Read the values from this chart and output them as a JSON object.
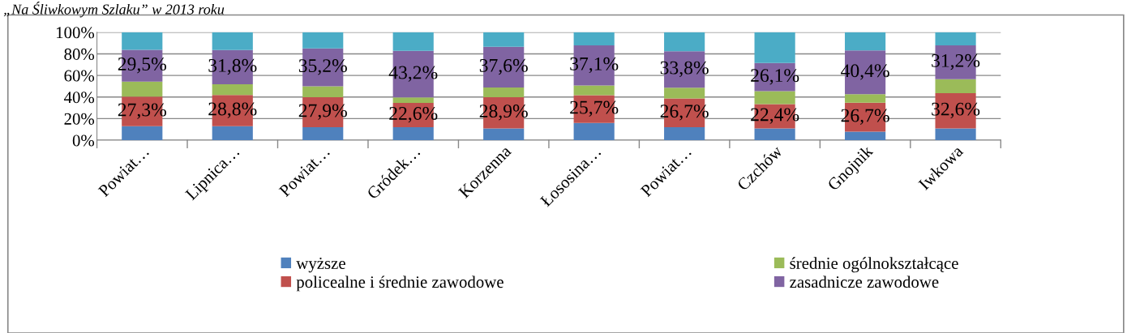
{
  "chart_data": {
    "type": "bar",
    "stacked": true,
    "title": "„Na Śliwkowym Szlaku” w 2013 roku",
    "categories": [
      "Powiat…",
      "Lipnica…",
      "Powiat…",
      "Gródek…",
      "Korzenna",
      "Łososina…",
      "Powiat…",
      "Czchów",
      "Gnojnik",
      "Iwkowa"
    ],
    "series": [
      {
        "name": "wyższe",
        "color": "#4f81bd",
        "values": [
          13,
          13,
          12,
          12,
          11,
          16,
          12,
          11,
          8,
          11
        ]
      },
      {
        "name": "policealne i średnie zawodowe",
        "color": "#c0504d",
        "values": [
          27.3,
          28.8,
          27.9,
          22.6,
          28.9,
          25.7,
          26.7,
          22.4,
          26.7,
          32.6
        ],
        "value_labels": [
          "27,3%",
          "28,8%",
          "27,9%",
          "22,6%",
          "28,9%",
          "25,7%",
          "26,7%",
          "22,4%",
          "26,7%",
          "32,6%"
        ]
      },
      {
        "name": "średnie ogólnokształcące",
        "color": "#9bbb59",
        "values": [
          14,
          10,
          10,
          5,
          9,
          9,
          10,
          12,
          8,
          13
        ]
      },
      {
        "name": "zasadnicze zawodowe",
        "color": "#8064a2",
        "values": [
          29.5,
          31.8,
          35.2,
          43.2,
          37.6,
          37.1,
          33.8,
          26.1,
          40.4,
          31.2
        ],
        "value_labels": [
          "29,5%",
          "31,8%",
          "35,2%",
          "43,2%",
          "37,6%",
          "37,1%",
          "33,8%",
          "26,1%",
          "40,4%",
          "31,2%"
        ]
      },
      {
        "color": "#4bacc6",
        "values": [
          16.2,
          16.4,
          14.9,
          17.2,
          13.5,
          12.2,
          17.5,
          28.5,
          16.9,
          12.2
        ]
      }
    ],
    "ylim": [
      0,
      100
    ],
    "yticks": [
      {
        "value": 0,
        "label": "0%"
      },
      {
        "value": 20,
        "label": "20%"
      },
      {
        "value": 40,
        "label": "40%"
      },
      {
        "value": 60,
        "label": "60%"
      },
      {
        "value": 80,
        "label": "80%"
      },
      {
        "value": 100,
        "label": "100%"
      }
    ],
    "grid": "y",
    "legend": "bottom"
  }
}
